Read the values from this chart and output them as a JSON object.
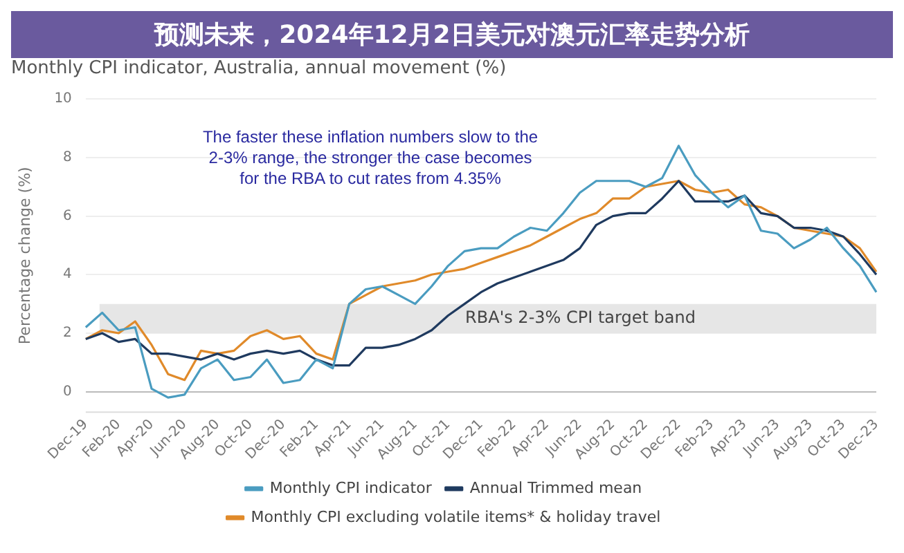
{
  "chart_data": {
    "type": "line",
    "title": "Monthly CPI indicator, Australia, annual movement (%)",
    "ylabel": "Percentage change (%)",
    "categories": [
      "Dec-19",
      null,
      "Feb-20",
      null,
      "Apr-20",
      null,
      "Jun-20",
      null,
      "Aug-20",
      null,
      "Oct-20",
      null,
      "Dec-20",
      null,
      "Feb-21",
      null,
      "Apr-21",
      null,
      "Jun-21",
      null,
      "Aug-21",
      null,
      "Oct-21",
      null,
      "Dec-21",
      null,
      "Feb-22",
      null,
      "Apr-22",
      null,
      "Jun-22",
      null,
      "Aug-22",
      null,
      "Oct-22",
      null,
      "Dec-22",
      null,
      "Feb-23",
      null,
      "Apr-23",
      null,
      "Jun-23",
      null,
      "Aug-23",
      null,
      "Oct-23",
      null,
      "Dec-23"
    ],
    "series": [
      {
        "name": "Monthly CPI indicator",
        "color": "#4a9cc0",
        "values": [
          2.2,
          2.7,
          2.1,
          2.2,
          0.1,
          -0.2,
          -0.1,
          0.8,
          1.1,
          0.4,
          0.5,
          1.1,
          0.3,
          0.4,
          1.1,
          0.8,
          3.0,
          3.5,
          3.6,
          3.3,
          3.0,
          3.6,
          4.3,
          4.8,
          4.9,
          4.9,
          5.3,
          5.6,
          5.5,
          6.1,
          6.8,
          7.2,
          7.2,
          7.2,
          7.0,
          7.3,
          8.4,
          7.4,
          6.8,
          6.3,
          6.7,
          5.5,
          5.4,
          4.9,
          5.2,
          5.6,
          4.9,
          4.3,
          3.4
        ]
      },
      {
        "name": "Annual Trimmed mean",
        "color": "#1f3a5f",
        "values": [
          1.8,
          2.0,
          1.7,
          1.8,
          1.3,
          1.3,
          1.2,
          1.1,
          1.3,
          1.1,
          1.3,
          1.4,
          1.3,
          1.4,
          1.1,
          0.9,
          0.9,
          1.5,
          1.5,
          1.6,
          1.8,
          2.1,
          2.6,
          3.0,
          3.4,
          3.7,
          3.9,
          4.1,
          4.3,
          4.5,
          4.9,
          5.7,
          6.0,
          6.1,
          6.1,
          6.6,
          7.2,
          6.5,
          6.5,
          6.5,
          6.7,
          6.1,
          6.0,
          5.6,
          5.6,
          5.5,
          5.3,
          4.7,
          4.0
        ]
      },
      {
        "name": "Monthly CPI excluding volatile items* & holiday travel",
        "color": "#e08a2a",
        "values": [
          1.8,
          2.1,
          2.0,
          2.4,
          1.6,
          0.6,
          0.4,
          1.4,
          1.3,
          1.4,
          1.9,
          2.1,
          1.8,
          1.9,
          1.3,
          1.1,
          3.0,
          3.3,
          3.6,
          3.7,
          3.8,
          4.0,
          4.1,
          4.2,
          4.4,
          4.6,
          4.8,
          5.0,
          5.3,
          5.6,
          5.9,
          6.1,
          6.6,
          6.6,
          7.0,
          7.1,
          7.2,
          6.9,
          6.8,
          6.9,
          6.4,
          6.3,
          6.0,
          5.6,
          5.5,
          5.4,
          5.3,
          4.9,
          4.1
        ]
      }
    ],
    "ylim": [
      -0.7,
      10
    ],
    "yticks": [
      0,
      2,
      4,
      6,
      8,
      10
    ],
    "bands": [
      {
        "axis": "y",
        "from": 2,
        "to": 3,
        "label": "RBA's 2-3% CPI target band",
        "color": "#e6e6e6"
      }
    ],
    "annotations": [
      "The faster these inflation numbers slow to the 2-3% range, the stronger the case becomes for the RBA to cut rates from 4.35%",
      "预测未来，2024年12月2日美元对澳元汇率走势分析"
    ],
    "grid": "y",
    "legend": "bottom",
    "marker": "none",
    "line_style": "solid"
  }
}
